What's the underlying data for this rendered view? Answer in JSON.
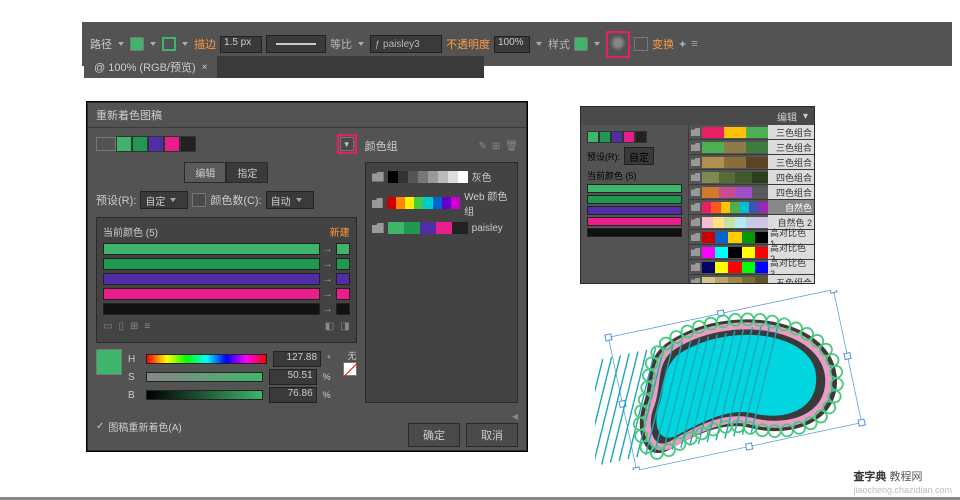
{
  "topbar": {
    "path_label": "路径",
    "stroke_label": "描边",
    "stroke_width": "1.5 px",
    "scale_label": "等比",
    "brush_name": "paisley3",
    "opacity_label": "不透明度",
    "opacity_value": "100%",
    "style_label": "样式",
    "transform_label": "变换",
    "fill_color": "#3fb56b",
    "stroke_color": "#3fb56b"
  },
  "tab": {
    "title": "@ 100% (RGB/预览)"
  },
  "dialog": {
    "title": "重新着色图稿",
    "swatches": [
      "#3fb56b",
      "#1f9850",
      "#512da8",
      "#e91e8c",
      "#222222"
    ],
    "tabs": {
      "edit": "编辑",
      "assign": "指定"
    },
    "preset_label": "预设(R):",
    "preset_value": "自定",
    "colorcount_label": "颜色数(C):",
    "colorcount_value": "自动",
    "current_colors_label": "当前颜色 (5)",
    "new_label": "新建",
    "bars": [
      {
        "fill": "#3fb56b",
        "end": "#3fb56b"
      },
      {
        "fill": "#1f9850",
        "end": "#1f9850"
      },
      {
        "fill": "#512da8",
        "end": "#512da8"
      },
      {
        "fill": "#e91e8c",
        "end": "#e91e8c"
      },
      {
        "fill": "#111111",
        "end": "#111111"
      }
    ],
    "hsb": {
      "preview": "#3fb56b",
      "h_label": "H",
      "h_val": "127.88",
      "h_deg": "°",
      "s_label": "S",
      "s_val": "50.51",
      "s_pct": "%",
      "b_label": "B",
      "b_val": "76.86",
      "b_pct": "%"
    },
    "none_label": "无",
    "recolor_check": "图稿重新着色(A)",
    "ok": "确定",
    "cancel": "取消",
    "group_col": {
      "header": "颜色组",
      "items": [
        {
          "label": "灰色",
          "colors": [
            "#000",
            "#333",
            "#555",
            "#777",
            "#999",
            "#bbb",
            "#ddd",
            "#fff"
          ]
        },
        {
          "label": "Web 颜色组",
          "colors": [
            "#c00",
            "#f80",
            "#fe0",
            "#4c4",
            "#0cc",
            "#06c",
            "#60c",
            "#c0c"
          ]
        },
        {
          "label": "paisley",
          "colors": [
            "#3fb56b",
            "#1f9850",
            "#512da8",
            "#e91e8c",
            "#222"
          ]
        }
      ]
    }
  },
  "panel2": {
    "menu_label": "编辑",
    "preset_label": "预设(R):",
    "preset_value": "自定",
    "current_label": "当前颜色 (5)",
    "swatches": [
      "#3fb56b",
      "#1f9850",
      "#512da8",
      "#e91e8c",
      "#222"
    ],
    "bars": [
      {
        "fill": "#3fb56b"
      },
      {
        "fill": "#1f9850"
      },
      {
        "fill": "#512da8"
      },
      {
        "fill": "#e91e8c"
      },
      {
        "fill": "#111111"
      }
    ],
    "groups": [
      {
        "name": "三色组合",
        "colors": [
          "#e91e63",
          "#ffc107",
          "#4caf50"
        ]
      },
      {
        "name": "三色组合",
        "colors": [
          "#4caf50",
          "#8e7b4a",
          "#3f7a3f"
        ]
      },
      {
        "name": "三色组合",
        "colors": [
          "#b08f4f",
          "#8c6d3a",
          "#5a4425"
        ]
      },
      {
        "name": "四色组合",
        "colors": [
          "#7e8a52",
          "#5a6b3a",
          "#3f5a2a",
          "#2a3f1a"
        ]
      },
      {
        "name": "四色组合",
        "colors": [
          "#d17a2b",
          "#c94d8c",
          "#9e4ec9",
          "#5a5a5a"
        ]
      },
      {
        "name": "自然色",
        "colors": [
          "#e91e63",
          "#ff5722",
          "#ffc107",
          "#4caf50",
          "#00bcd4",
          "#3f51b5",
          "#9c27b0"
        ],
        "selected": true
      },
      {
        "name": "自然色 2",
        "colors": [
          "#f8bbd0",
          "#ffe082",
          "#c5e1a5",
          "#b2ebf2",
          "#c5cae9",
          "#d1c4e9"
        ]
      },
      {
        "name": "高对比色 1",
        "colors": [
          "#c00",
          "#06c",
          "#fc0",
          "#090",
          "#000"
        ]
      },
      {
        "name": "高对比色 2",
        "colors": [
          "#f0f",
          "#0ff",
          "#000",
          "#ff0",
          "#f00"
        ]
      },
      {
        "name": "高对比色 3",
        "colors": [
          "#006",
          "#ff0",
          "#f00",
          "#0f0",
          "#00f"
        ]
      },
      {
        "name": "五色组合",
        "colors": [
          "#d4c590",
          "#b8a56a",
          "#9c8a4a",
          "#7e6f35",
          "#5f5425"
        ]
      }
    ]
  },
  "paisley": {
    "body_fill": "#00d5e0",
    "body_stroke": "#ea9bc3",
    "outer_stroke": "#3a3a3a",
    "scallop": "#4ac97e",
    "hatch": "#00d5e0"
  },
  "watermark": {
    "brand": "查字典",
    "suffix": "教程网",
    "url": "jiaocheng.chazidian.com"
  }
}
